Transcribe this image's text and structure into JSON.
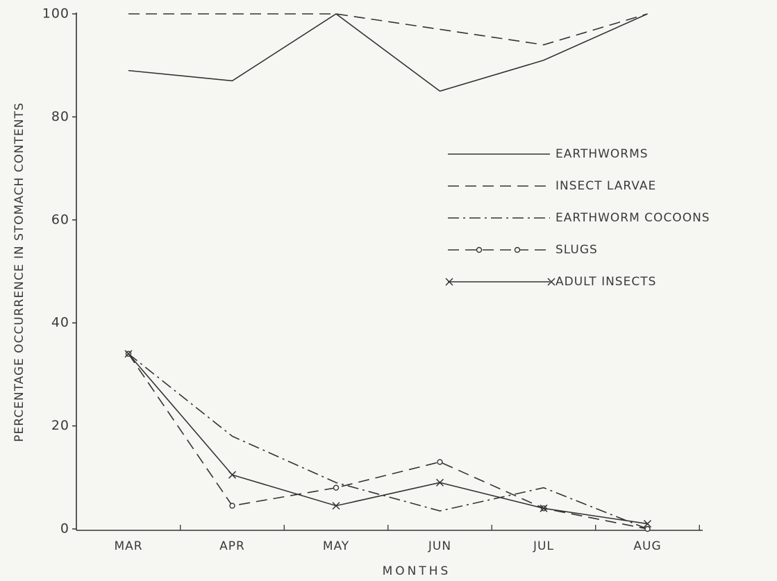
{
  "chart_data": {
    "type": "line",
    "xlabel": "MONTHS",
    "ylabel": "PERCENTAGE  OCCURRENCE  IN STOMACH CONTENTS",
    "categories": [
      "MAR",
      "APR",
      "MAY",
      "JUN",
      "JUL",
      "AUG"
    ],
    "ylim": [
      0,
      100
    ],
    "yticks": [
      0,
      20,
      40,
      60,
      80,
      100
    ],
    "legend": "upper right",
    "series": [
      {
        "name": "EARTHWORMS",
        "color": "#333333",
        "dash": "solid",
        "marker": "none",
        "values": [
          89,
          87,
          100,
          85,
          91,
          100
        ]
      },
      {
        "name": "INSECT LARVAE",
        "color": "#333333",
        "dash": "dashed",
        "marker": "none",
        "values": [
          100,
          100,
          100,
          97,
          94,
          100
        ]
      },
      {
        "name": "EARTHWORM COCOONS",
        "color": "#333333",
        "dash": "dashdot",
        "marker": "none",
        "values": [
          34,
          18,
          9,
          3.5,
          8,
          0
        ]
      },
      {
        "name": "SLUGS",
        "color": "#333333",
        "dash": "dashed",
        "marker": "circle",
        "values": [
          34,
          4.5,
          8,
          13,
          4,
          0
        ]
      },
      {
        "name": "ADULT INSECTS",
        "color": "#333333",
        "dash": "solid",
        "marker": "x",
        "values": [
          34,
          10.5,
          4.5,
          9,
          4,
          1
        ]
      }
    ]
  }
}
